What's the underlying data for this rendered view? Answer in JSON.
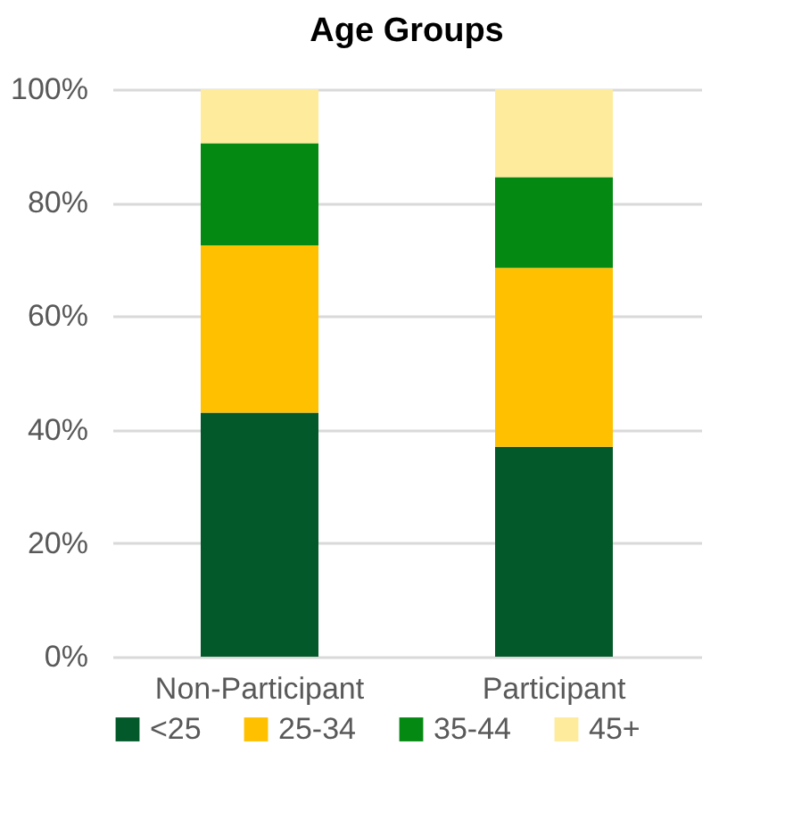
{
  "chart_data": {
    "type": "bar",
    "title": "Age Groups",
    "stacked": true,
    "categories": [
      "Non-Participant",
      "Participant"
    ],
    "series": [
      {
        "name": "<25",
        "color": "#03592a",
        "values": [
          43,
          37
        ]
      },
      {
        "name": "25-34",
        "color": "#ffc000",
        "values": [
          29.5,
          31.5
        ]
      },
      {
        "name": "35-44",
        "color": "#048a12",
        "values": [
          18,
          16
        ]
      },
      {
        "name": "45+",
        "color": "#ffeb9c",
        "values": [
          9.5,
          15.5
        ]
      }
    ],
    "ylim": [
      0,
      100
    ],
    "yticks": [
      {
        "value": 0,
        "label": "0%"
      },
      {
        "value": 20,
        "label": "20%"
      },
      {
        "value": 40,
        "label": "40%"
      },
      {
        "value": 60,
        "label": "60%"
      },
      {
        "value": 80,
        "label": "80%"
      },
      {
        "value": 100,
        "label": "100%"
      }
    ],
    "grid": "y",
    "legend": "bottom"
  }
}
